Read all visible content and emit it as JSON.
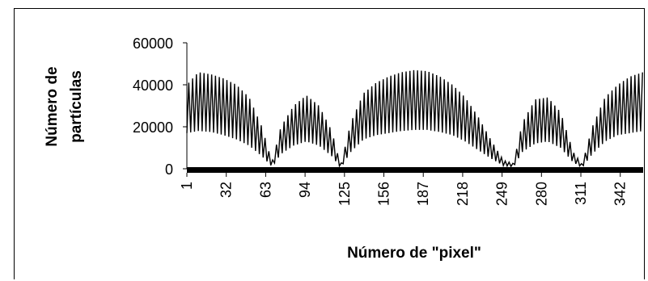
{
  "chart_data": {
    "type": "line",
    "title": "",
    "xlabel": "Número de \"pixel\"",
    "ylabel": [
      "Número de",
      "partículas"
    ],
    "ylim": [
      0,
      60000
    ],
    "y_ticks": [
      "0",
      "20000",
      "40000",
      "60000"
    ],
    "y_tick_values": [
      0,
      20000,
      40000,
      60000
    ],
    "xlim": [
      1,
      360
    ],
    "x_ticks": [
      "1",
      "32",
      "63",
      "94",
      "125",
      "156",
      "187",
      "218",
      "249",
      "280",
      "311",
      "342"
    ],
    "x_tick_values": [
      1,
      32,
      63,
      94,
      125,
      156,
      187,
      218,
      249,
      280,
      311,
      342
    ],
    "grid": false,
    "legend": "none",
    "line_color": "#000000",
    "series": [
      {
        "envelope_x": [
          1,
          10,
          20,
          30,
          40,
          50,
          60,
          68,
          75,
          85,
          95,
          105,
          115,
          122,
          130,
          140,
          150,
          160,
          170,
          180,
          190,
          200,
          210,
          220,
          230,
          240,
          250,
          258,
          265,
          275,
          285,
          295,
          305,
          312,
          320,
          330,
          340,
          350,
          360
        ],
        "upper": [
          40000,
          46000,
          45000,
          43000,
          40000,
          34000,
          20000,
          3000,
          20000,
          30000,
          35000,
          30000,
          18000,
          1500,
          22000,
          36000,
          41000,
          44000,
          46000,
          47000,
          46500,
          44000,
          40000,
          34000,
          25000,
          14000,
          4000,
          2500,
          22000,
          33000,
          34000,
          27000,
          8000,
          2000,
          20000,
          34000,
          40000,
          44000,
          46000
        ],
        "lower": [
          17000,
          18000,
          17500,
          16000,
          14000,
          11000,
          6000,
          1000,
          7000,
          11000,
          13000,
          11000,
          6000,
          500,
          8000,
          14000,
          16000,
          17000,
          18000,
          18500,
          18500,
          17500,
          16000,
          13000,
          9000,
          5000,
          1500,
          1000,
          8000,
          12000,
          13000,
          10000,
          3000,
          700,
          7000,
          13000,
          16000,
          17000,
          18000
        ],
        "spike_period": 3
      }
    ]
  }
}
